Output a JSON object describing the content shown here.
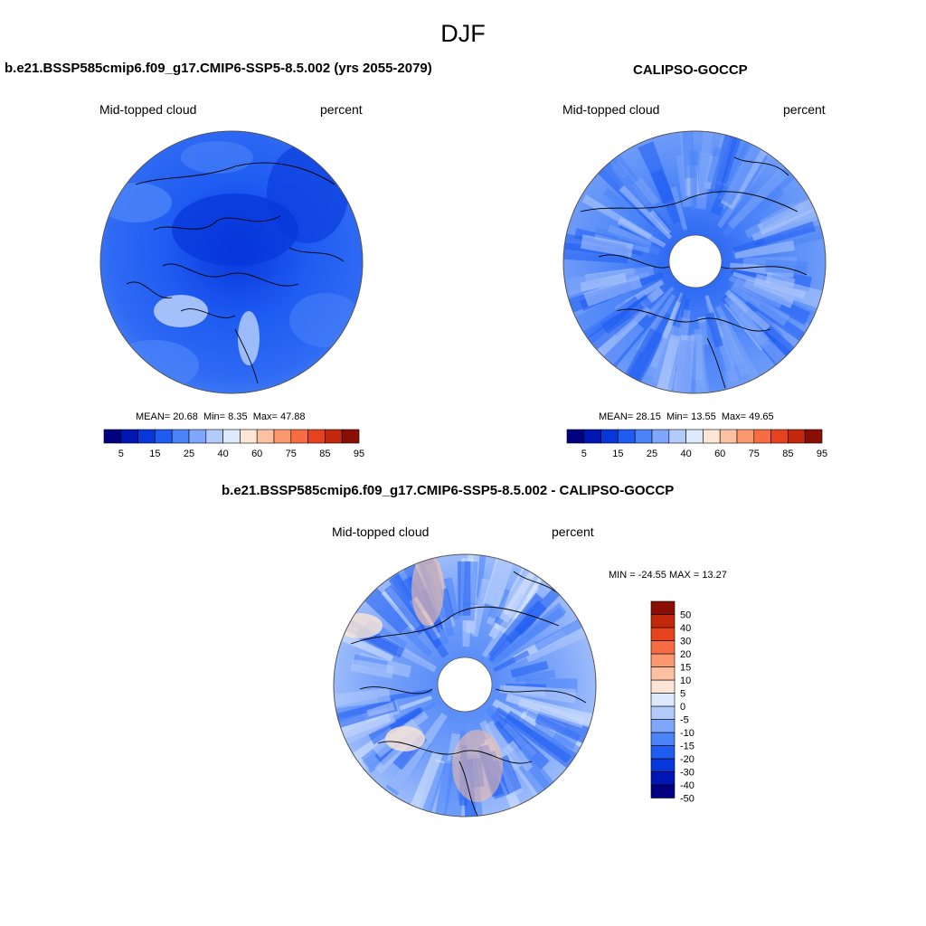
{
  "figure": {
    "title": "DJF"
  },
  "panels": [
    {
      "title": "b.e21.BSSP585cmip6.f09_g17.CMIP6-SSP5-8.5.002 (yrs 2055-2079)",
      "left_label": "Mid-topped cloud",
      "right_label": "percent",
      "stats": {
        "mean_label": "MEAN=",
        "mean": "20.68",
        "min_label": "Min=",
        "min": "8.35",
        "max_label": "Max=",
        "max": "47.88"
      }
    },
    {
      "title": "CALIPSO-GOCCP",
      "left_label": "Mid-topped cloud",
      "right_label": "percent",
      "stats": {
        "mean_label": "MEAN=",
        "mean": "28.15",
        "min_label": "Min=",
        "min": "13.55",
        "max_label": "Max=",
        "max": "49.65"
      }
    },
    {
      "title": "b.e21.BSSP585cmip6.f09_g17.CMIP6-SSP5-8.5.002 - CALIPSO-GOCCP",
      "left_label": "Mid-topped cloud",
      "right_label": "percent",
      "stats_text": "MIN = -24.55 MAX =  13.27"
    }
  ],
  "chart_data": [
    {
      "type": "heatmap",
      "projection": "north-polar-stereographic",
      "title": "b.e21.BSSP585cmip6.f09_g17.CMIP6-SSP5-8.5.002 (yrs 2055-2079)",
      "units": "percent",
      "mean": 20.68,
      "min": 8.35,
      "max": 47.88,
      "colorbar": {
        "orientation": "horizontal",
        "colors": [
          "#000080",
          "#0016b2",
          "#0737db",
          "#1f5cf2",
          "#4b84f7",
          "#7ea6fa",
          "#b2cbfb",
          "#dde9fd",
          "#fde6d6",
          "#fcc0a2",
          "#fb9870",
          "#f76d43",
          "#e5421e",
          "#c1280c",
          "#8b0e04"
        ],
        "tick_labels": [
          "5",
          "15",
          "25",
          "40",
          "60",
          "75",
          "85",
          "95"
        ]
      }
    },
    {
      "type": "heatmap",
      "projection": "north-polar-stereographic",
      "title": "CALIPSO-GOCCP",
      "units": "percent",
      "mean": 28.15,
      "min": 13.55,
      "max": 49.65,
      "colorbar": {
        "orientation": "horizontal",
        "colors": [
          "#000080",
          "#0016b2",
          "#0737db",
          "#1f5cf2",
          "#4b84f7",
          "#7ea6fa",
          "#b2cbfb",
          "#dde9fd",
          "#fde6d6",
          "#fcc0a2",
          "#fb9870",
          "#f76d43",
          "#e5421e",
          "#c1280c",
          "#8b0e04"
        ],
        "tick_labels": [
          "5",
          "15",
          "25",
          "40",
          "60",
          "75",
          "85",
          "95"
        ]
      }
    },
    {
      "type": "heatmap",
      "projection": "north-polar-stereographic",
      "title": "b.e21.BSSP585cmip6.f09_g17.CMIP6-SSP5-8.5.002 - CALIPSO-GOCCP",
      "units": "percent",
      "min": -24.55,
      "max": 13.27,
      "colorbar": {
        "orientation": "vertical",
        "colors": [
          "#000080",
          "#0016b2",
          "#0737db",
          "#1f5cf2",
          "#4b84f7",
          "#7ea6fa",
          "#b2cbfb",
          "#dde9fd",
          "#fde6d6",
          "#fcc0a2",
          "#fb9870",
          "#f76d43",
          "#e5421e",
          "#c1280c",
          "#8b0e04"
        ],
        "tick_labels": [
          "50",
          "40",
          "30",
          "20",
          "15",
          "10",
          "5",
          "0",
          "-5",
          "-10",
          "-15",
          "-20",
          "-30",
          "-40",
          "-50"
        ]
      }
    }
  ]
}
